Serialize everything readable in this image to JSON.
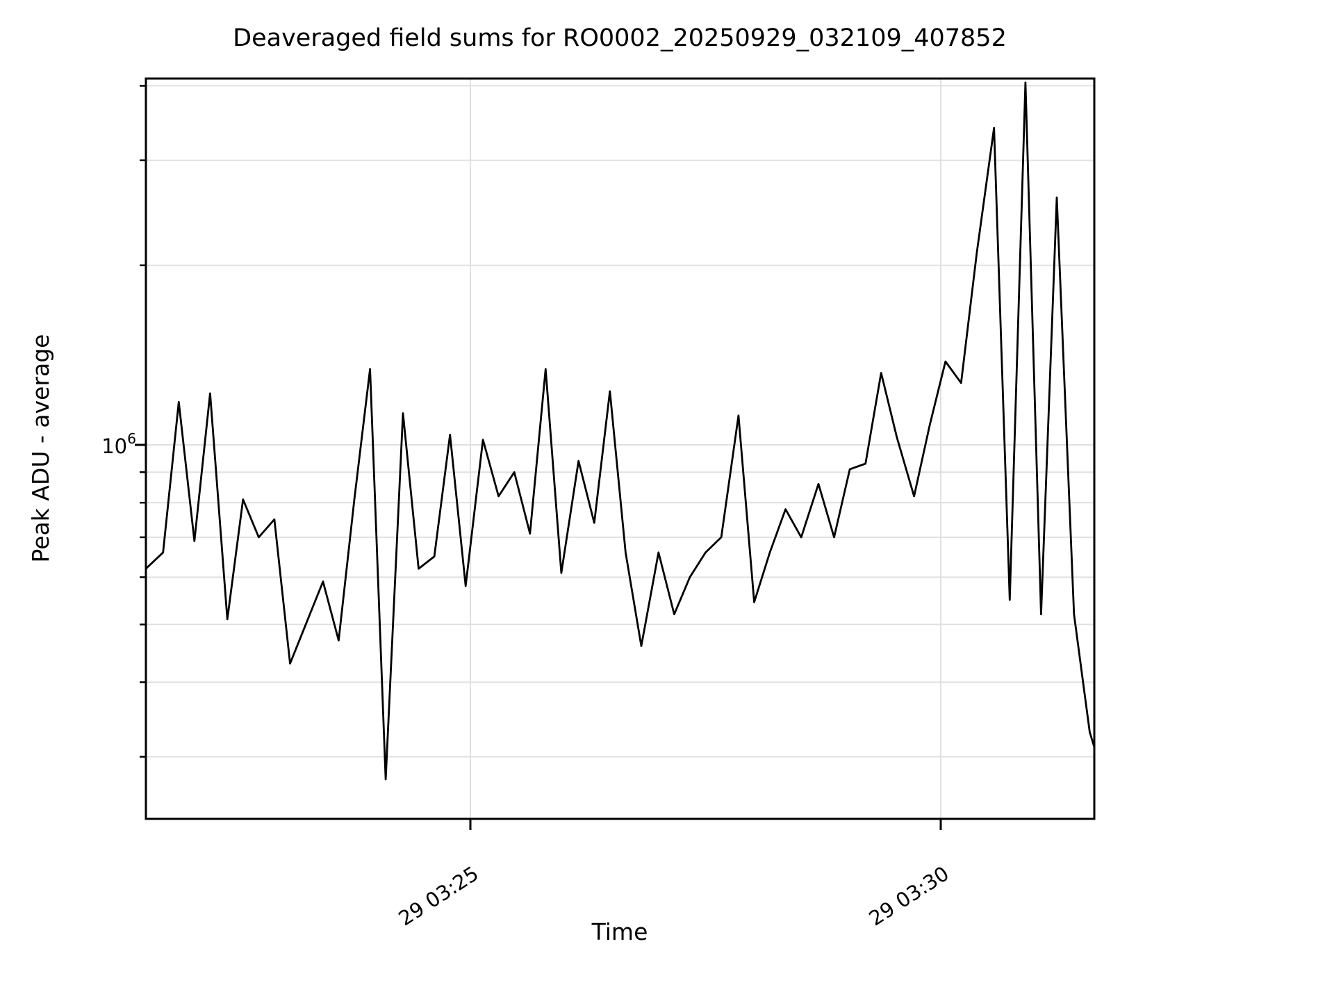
{
  "figure": {
    "title": "Deaveraged field sums for RO0002_20250929_032109_407852",
    "xlabel": "Time",
    "ylabel": "Peak ADU - average",
    "background_color": "#ffffff",
    "line_color": "#000000",
    "grid_color": "#e0e0e0",
    "spine_color": "#000000"
  },
  "yaxis": {
    "major_tick_value": 1000000,
    "major_label_base": "10",
    "major_label_exp": "6",
    "minor_tick_values": [
      300000,
      400000,
      500000,
      600000,
      700000,
      800000,
      900000,
      2000000,
      3000000,
      4000000
    ]
  },
  "xaxis": {
    "ticks": [
      {
        "label": "29 03:25",
        "time": "03:25:00"
      },
      {
        "label": "29 03:30",
        "time": "03:30:00"
      }
    ]
  },
  "chart_data": {
    "type": "line",
    "title": "Deaveraged field sums for RO0002_20250929_032109_407852",
    "xlabel": "Time",
    "ylabel": "Peak ADU - average",
    "y_scale": "log",
    "ylim": [
      236000,
      4110000
    ],
    "xlim": [
      "03:21:33",
      "03:31:39"
    ],
    "grid": true,
    "legend": "none",
    "series": [
      {
        "name": "deaveraged-field-sum",
        "color": "#000000",
        "x": [
          "03:21:33",
          "03:21:44",
          "03:21:54",
          "03:22:04",
          "03:22:14",
          "03:22:25",
          "03:22:35",
          "03:22:45",
          "03:22:55",
          "03:23:05",
          "03:23:15",
          "03:23:26",
          "03:23:36",
          "03:23:46",
          "03:23:56",
          "03:24:06",
          "03:24:17",
          "03:24:27",
          "03:24:37",
          "03:24:47",
          "03:24:57",
          "03:25:08",
          "03:25:18",
          "03:25:28",
          "03:25:38",
          "03:25:48",
          "03:25:58",
          "03:26:09",
          "03:26:19",
          "03:26:29",
          "03:26:39",
          "03:26:49",
          "03:27:00",
          "03:27:10",
          "03:27:20",
          "03:27:30",
          "03:27:40",
          "03:27:51",
          "03:28:01",
          "03:28:11",
          "03:28:21",
          "03:28:31",
          "03:28:42",
          "03:28:52",
          "03:29:02",
          "03:29:12",
          "03:29:22",
          "03:29:32",
          "03:29:43",
          "03:29:53",
          "03:30:03",
          "03:30:13",
          "03:30:23",
          "03:30:34",
          "03:30:44",
          "03:30:54",
          "03:31:04",
          "03:31:14",
          "03:31:25",
          "03:31:35",
          "03:31:39"
        ],
        "values": [
          620000,
          660000,
          1180000,
          690000,
          1220000,
          510000,
          810000,
          700000,
          750000,
          430000,
          500000,
          590000,
          470000,
          810000,
          1340000,
          275000,
          1130000,
          620000,
          650000,
          1040000,
          580000,
          1020000,
          820000,
          900000,
          710000,
          1340000,
          610000,
          940000,
          740000,
          1230000,
          660000,
          460000,
          660000,
          520000,
          600000,
          660000,
          700000,
          1120000,
          545000,
          660000,
          780000,
          700000,
          860000,
          700000,
          910000,
          930000,
          1320000,
          1030000,
          820000,
          1080000,
          1380000,
          1270000,
          2100000,
          3400000,
          550000,
          4050000,
          520000,
          2600000,
          520000,
          330000,
          305000
        ]
      }
    ]
  }
}
